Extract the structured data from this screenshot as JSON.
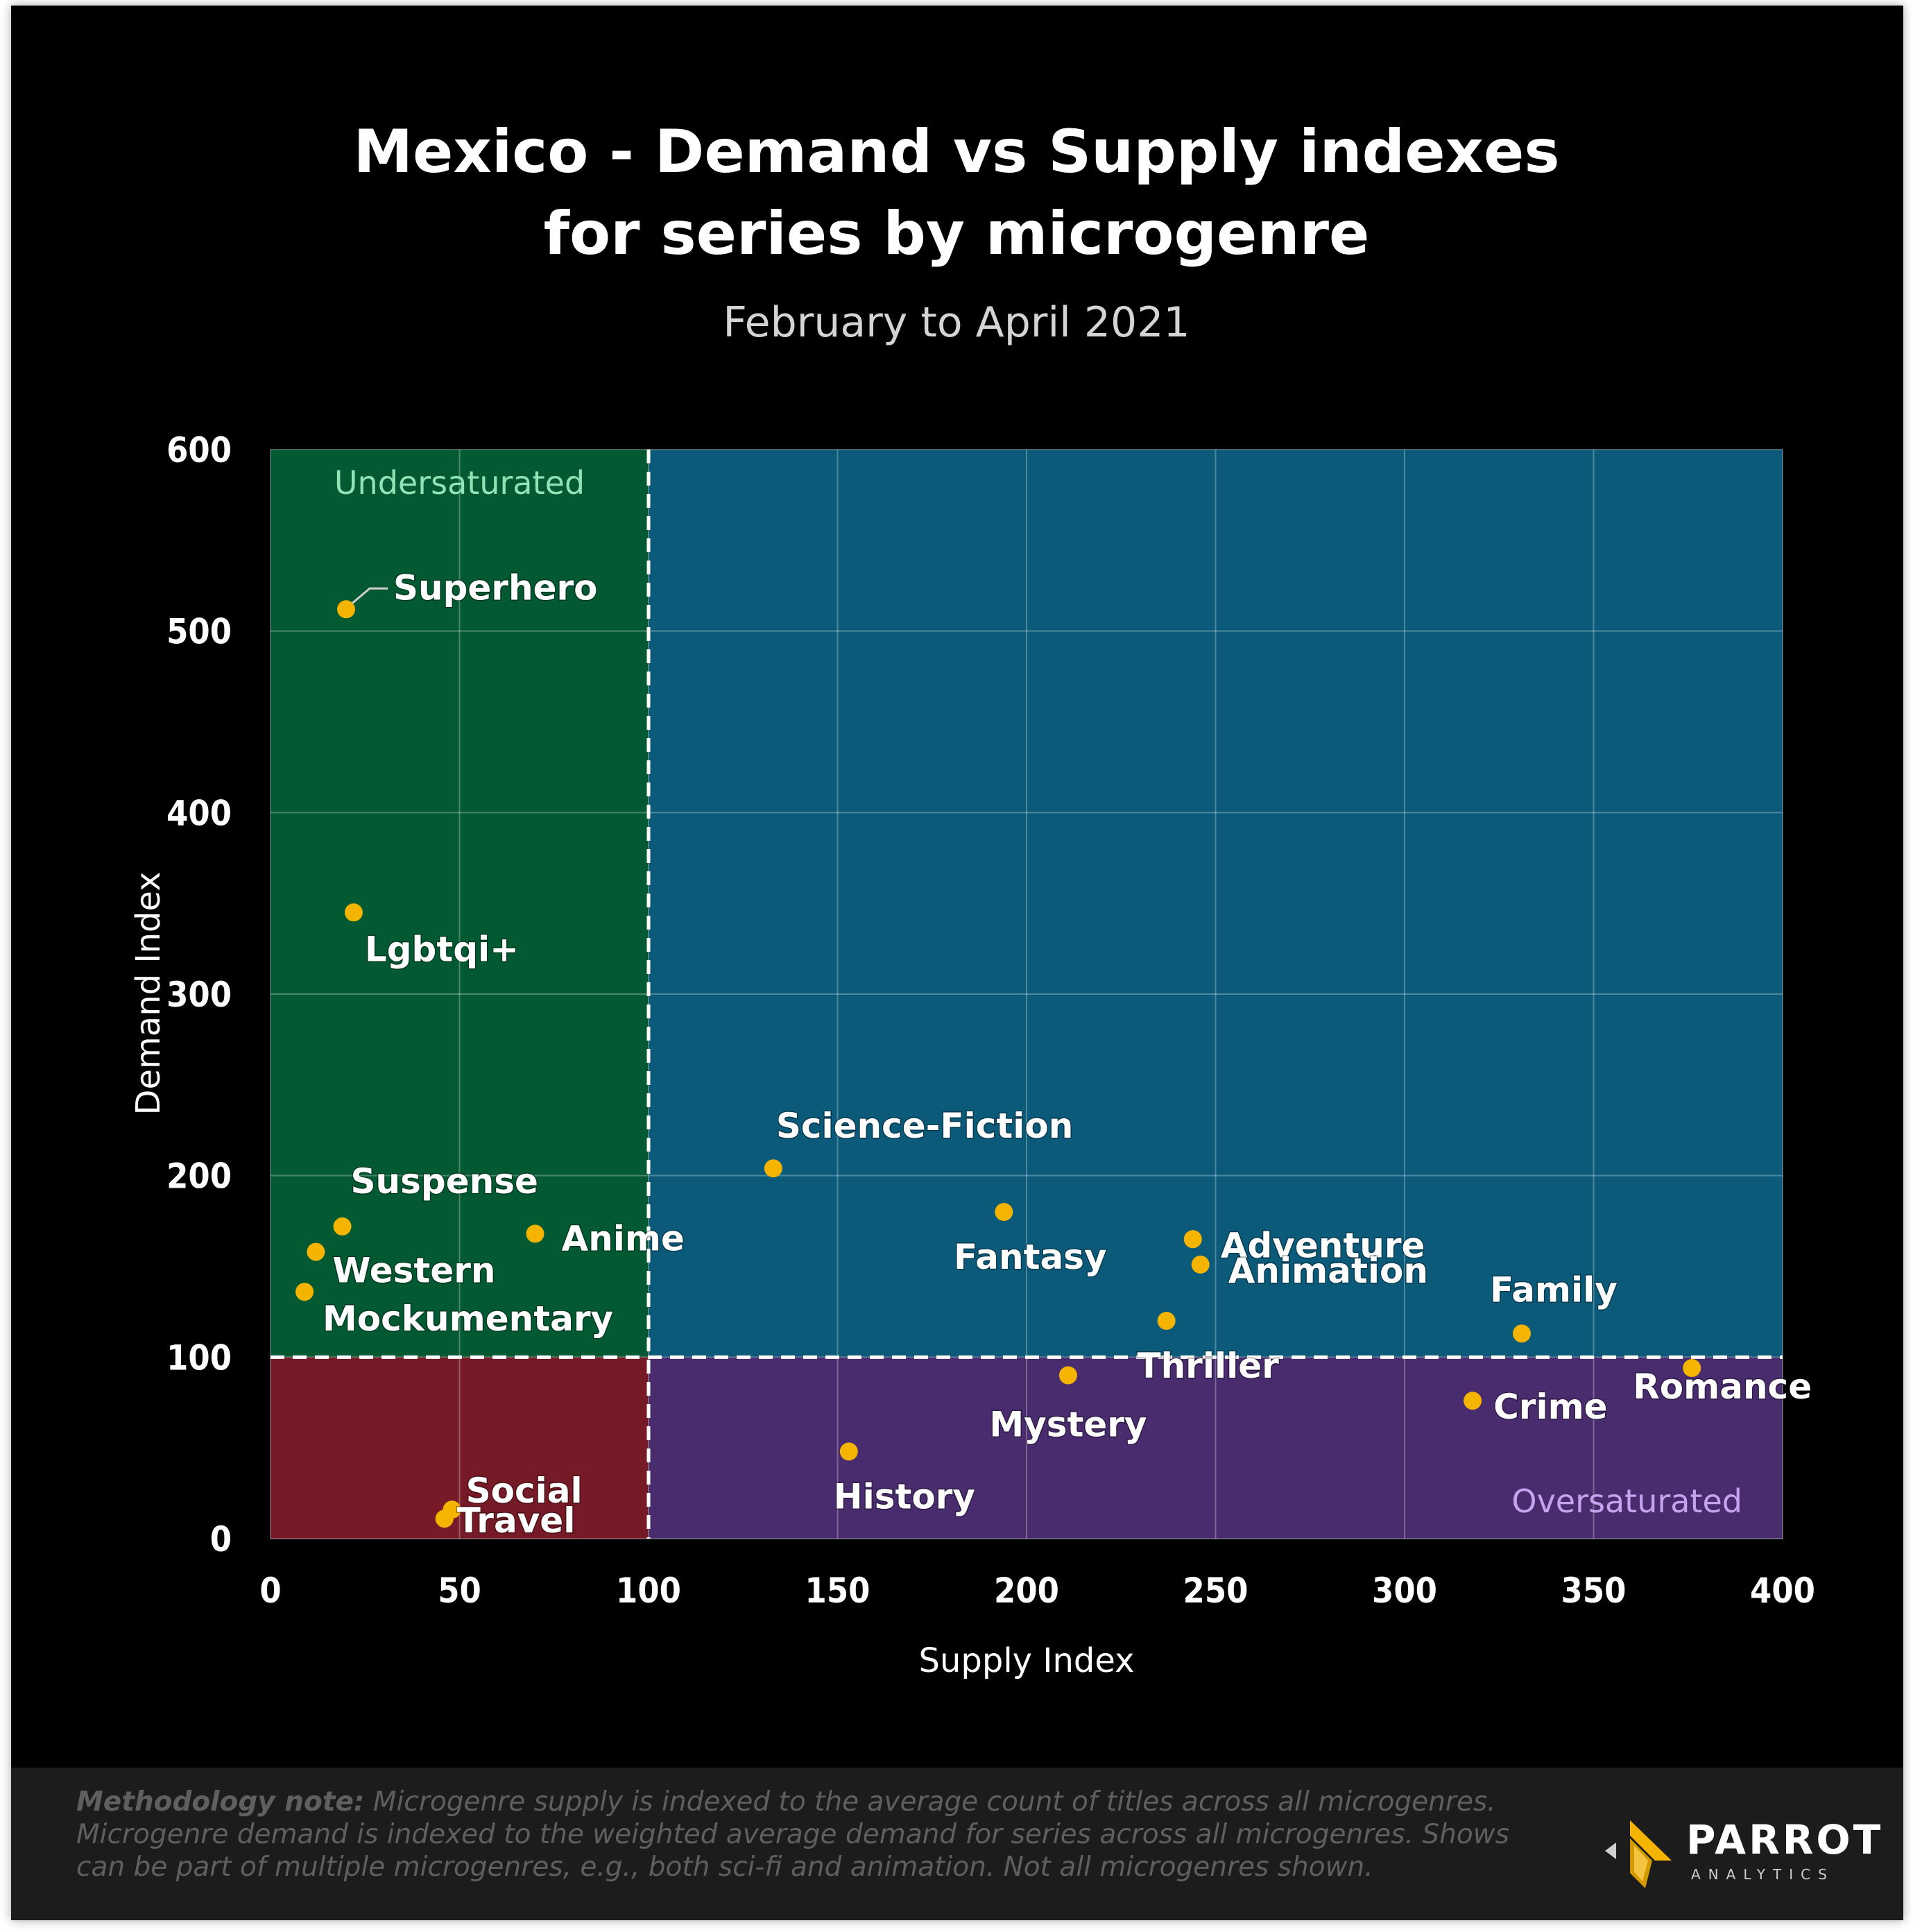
{
  "title_line1": "Mexico - Demand vs Supply indexes",
  "title_line2": "for series by microgenre",
  "subtitle": "February to April 2021",
  "chart_data": {
    "type": "scatter",
    "title": "Mexico - Demand vs Supply indexes for series by microgenre",
    "subtitle": "February to April 2021",
    "xlabel": "Supply Index",
    "ylabel": "Demand Index",
    "xlim": [
      0,
      400
    ],
    "ylim": [
      0,
      600
    ],
    "xticks": [
      0,
      50,
      100,
      150,
      200,
      250,
      300,
      350,
      400
    ],
    "yticks": [
      0,
      100,
      200,
      300,
      400,
      500,
      600
    ],
    "grid": true,
    "thresholds": {
      "x": 100,
      "y": 100
    },
    "quadrants": {
      "top_left": {
        "label": "Undersaturated",
        "color": "#035932"
      },
      "top_right": {
        "label": "",
        "color": "#0b5a7a"
      },
      "bottom_left": {
        "label": "",
        "color": "#751a26"
      },
      "bottom_right": {
        "label": "Oversaturated",
        "color": "#482c6e"
      }
    },
    "point_color": "#f5b400",
    "points": [
      {
        "name": "Superhero",
        "x": 20,
        "y": 512
      },
      {
        "name": "Lgbtqi+",
        "x": 22,
        "y": 345
      },
      {
        "name": "Suspense",
        "x": 19,
        "y": 172
      },
      {
        "name": "Western",
        "x": 12,
        "y": 158
      },
      {
        "name": "Mockumentary",
        "x": 9,
        "y": 136
      },
      {
        "name": "Anime",
        "x": 70,
        "y": 168
      },
      {
        "name": "Social",
        "x": 48,
        "y": 16
      },
      {
        "name": "Travel",
        "x": 46,
        "y": 11
      },
      {
        "name": "Science-Fiction",
        "x": 133,
        "y": 204
      },
      {
        "name": "Fantasy",
        "x": 194,
        "y": 180
      },
      {
        "name": "Adventure",
        "x": 244,
        "y": 165
      },
      {
        "name": "Animation",
        "x": 246,
        "y": 151
      },
      {
        "name": "Thriller",
        "x": 237,
        "y": 120
      },
      {
        "name": "Mystery",
        "x": 211,
        "y": 90
      },
      {
        "name": "History",
        "x": 153,
        "y": 48
      },
      {
        "name": "Family",
        "x": 331,
        "y": 113
      },
      {
        "name": "Crime",
        "x": 318,
        "y": 76
      },
      {
        "name": "Romance",
        "x": 376,
        "y": 94
      }
    ]
  },
  "footer": {
    "note_bold": "Methodology note:",
    "note_text": " Microgenre supply is indexed to the average count of titles across all microgenres. Microgenre demand is indexed to the weighted average demand for series across all microgenres. Shows can be part of multiple microgenres, e.g., both sci-fi and animation. Not all microgenres shown.",
    "logo_name": "PARROT",
    "logo_sub": "ANALYTICS"
  }
}
